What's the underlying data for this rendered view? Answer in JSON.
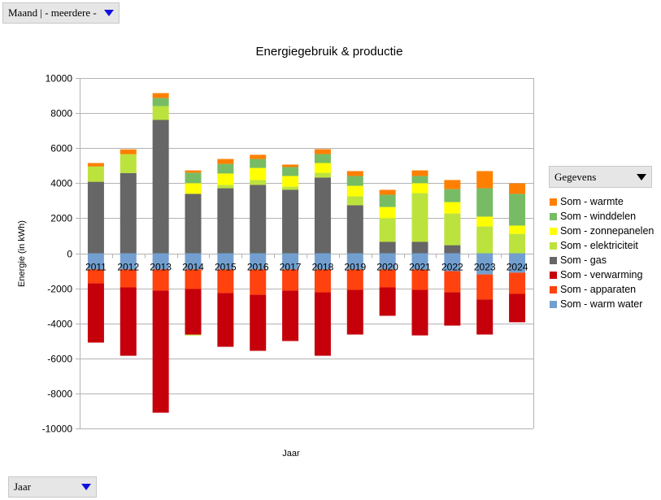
{
  "controls": {
    "month_filter": "Maand | - meerdere -",
    "data_field": "Gegevens",
    "row_field": "Jaar"
  },
  "chart_data": {
    "type": "bar",
    "stacked": true,
    "title": "Energiegebruik & productie",
    "xlabel": "Jaar",
    "ylabel": "Energie (in kWh)",
    "ylim": [
      -10000,
      10000
    ],
    "yticks": [
      10000,
      8000,
      6000,
      4000,
      2000,
      0,
      -2000,
      -4000,
      -6000,
      -8000,
      -10000
    ],
    "grid": true,
    "legend_position": "right",
    "categories": [
      "2011",
      "2012",
      "2013",
      "2014",
      "2015",
      "2016",
      "2017",
      "2018",
      "2019",
      "2020",
      "2021",
      "2022",
      "2023",
      "2024"
    ],
    "series": [
      {
        "name": "Som - warm water",
        "color": "#729fcf",
        "values": [
          -920,
          -920,
          -920,
          -920,
          -920,
          -920,
          -920,
          -920,
          -920,
          -920,
          -920,
          -1020,
          -1210,
          -1110
        ]
      },
      {
        "name": "Som - apparaten",
        "color": "#ff420e",
        "values": [
          -800,
          -1030,
          -1210,
          -1120,
          -1350,
          -1450,
          -1210,
          -1310,
          -1170,
          -1030,
          -1170,
          -1210,
          -1430,
          -1210
        ]
      },
      {
        "name": "Som - verwarming",
        "color": "#c5000b",
        "values": [
          -3380,
          -3900,
          -6970,
          -2600,
          -3070,
          -3200,
          -2880,
          -3620,
          -2550,
          -1620,
          -2600,
          -1900,
          -2000,
          -1620
        ]
      },
      {
        "name": "Som - gas",
        "color": "#666666",
        "values": [
          4080,
          4580,
          7610,
          3390,
          3710,
          3900,
          3620,
          4320,
          2740,
          650,
          650,
          460,
          0,
          0
        ]
      },
      {
        "name": "Som - elektriciteit",
        "color": "#bce33d",
        "values": [
          870,
          1070,
          790,
          -50,
          190,
          280,
          180,
          270,
          510,
          1350,
          2780,
          1810,
          1530,
          1110
        ]
      },
      {
        "name": "Som - zonnepanelen",
        "color": "#ffff00",
        "values": [
          0,
          0,
          0,
          610,
          650,
          690,
          610,
          560,
          600,
          640,
          570,
          650,
          560,
          470
        ]
      },
      {
        "name": "Som - winddelen",
        "color": "#77bc65",
        "values": [
          0,
          0,
          460,
          600,
          550,
          510,
          510,
          510,
          560,
          700,
          410,
          740,
          1620,
          1810
        ]
      },
      {
        "name": "Som - warmte",
        "color": "#ff8000",
        "values": [
          200,
          280,
          280,
          130,
          280,
          240,
          140,
          280,
          280,
          280,
          320,
          520,
          980,
          600
        ]
      }
    ],
    "legend_order": [
      "Som - warmte",
      "Som - winddelen",
      "Som - zonnepanelen",
      "Som - elektriciteit",
      "Som - gas",
      "Som - verwarming",
      "Som - apparaten",
      "Som - warm water"
    ]
  }
}
